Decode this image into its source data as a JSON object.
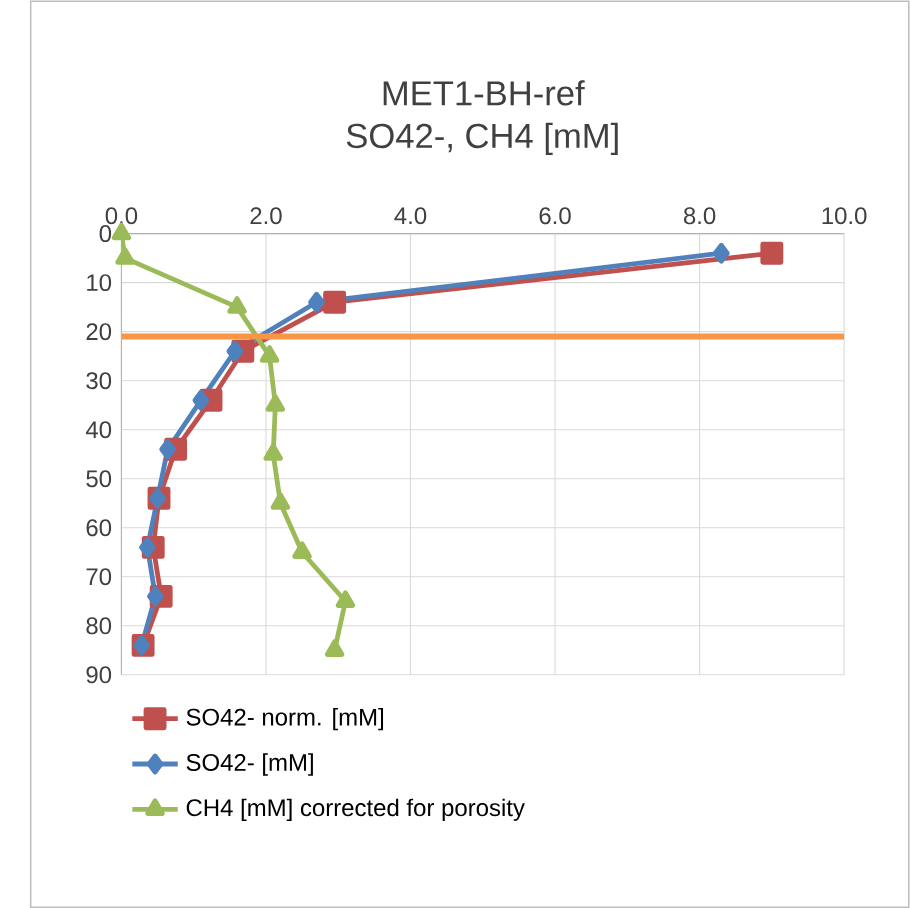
{
  "chart_data": {
    "type": "line",
    "title": "MET1-BH-ref\nSO42-, CH4 [mM]",
    "xlim": [
      0,
      10
    ],
    "xticks": [
      {
        "value": 0,
        "label": "0.0"
      },
      {
        "value": 2,
        "label": "2.0"
      },
      {
        "value": 4,
        "label": "4.0"
      },
      {
        "value": 6,
        "label": "6.0"
      },
      {
        "value": 8,
        "label": "8.0"
      },
      {
        "value": 10,
        "label": "10.0"
      }
    ],
    "ylim": [
      90,
      0
    ],
    "yticks": [
      0,
      10,
      20,
      30,
      40,
      50,
      60,
      70,
      80,
      90
    ],
    "grid": true,
    "legend": "bottom",
    "series": [
      {
        "name": "SO42- norm. [mM]",
        "color": "#c0504d",
        "marker": "square",
        "x": [
          9.0,
          2.95,
          1.68,
          1.24,
          0.75,
          0.52,
          0.44,
          0.55,
          0.3
        ],
        "values": [
          4,
          14,
          24,
          34,
          44,
          54,
          64,
          74,
          84
        ]
      },
      {
        "name": "SO42- [mM]",
        "color": "#4f81bd",
        "marker": "diamond",
        "x": [
          8.3,
          2.7,
          1.57,
          1.1,
          0.64,
          0.5,
          0.36,
          0.47,
          0.28
        ],
        "values": [
          4,
          14,
          24,
          34,
          44,
          54,
          64,
          74,
          84
        ]
      },
      {
        "name": "CH4 [mM] corrected for porosity",
        "color": "#9bbb59",
        "marker": "triangle",
        "x": [
          0.0,
          0.05,
          1.6,
          2.05,
          2.13,
          2.1,
          2.2,
          2.5,
          3.1,
          2.95
        ],
        "values": [
          0,
          5,
          15,
          25,
          35,
          45,
          55,
          65,
          75,
          85
        ]
      }
    ],
    "ref_lines": [
      {
        "axis": "y",
        "value": 21,
        "color": "#f79646"
      }
    ]
  }
}
